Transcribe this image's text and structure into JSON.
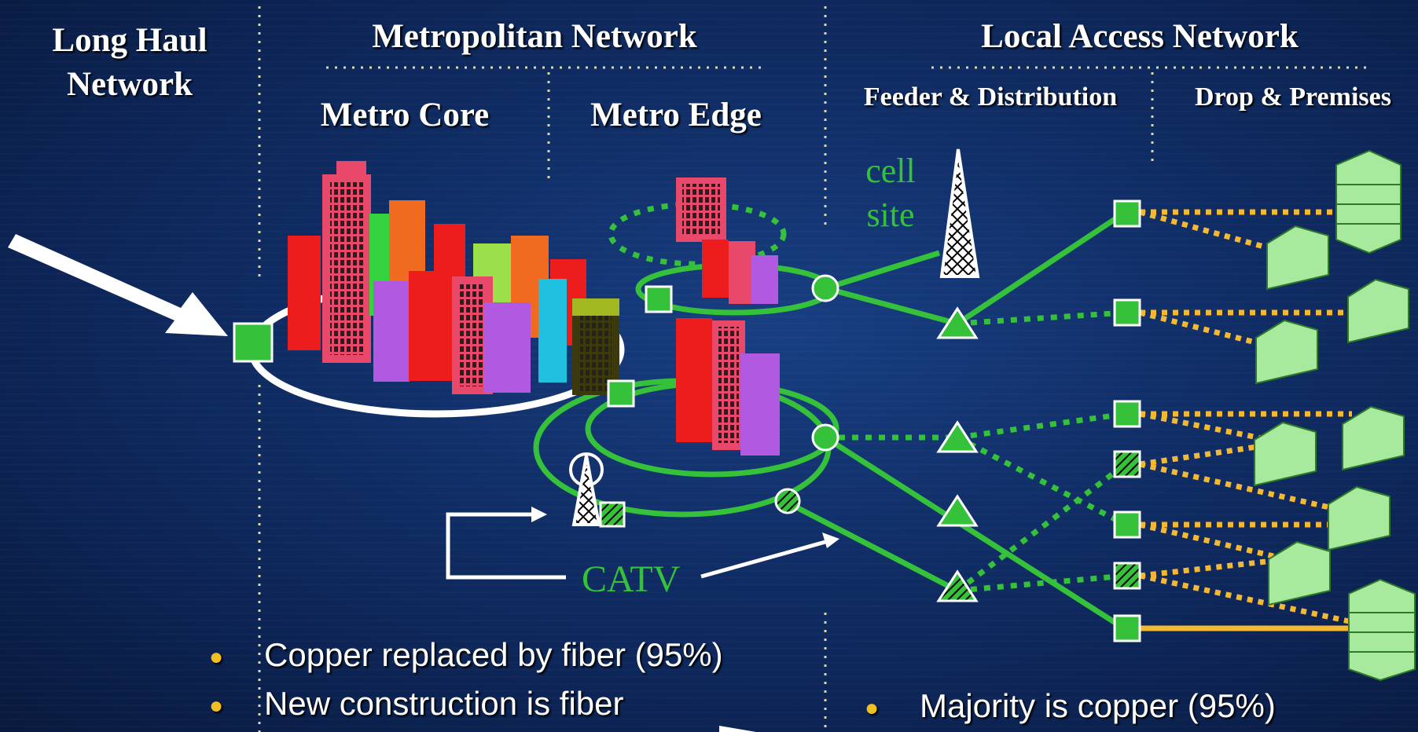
{
  "headers": {
    "long_haul": "Long Haul Network",
    "metro": "Metropolitan Network",
    "local": "Local Access Network",
    "metro_core": "Metro Core",
    "metro_edge": "Metro Edge",
    "feeder": "Feeder & Distribution",
    "drop": "Drop & Premises"
  },
  "labels": {
    "cell_line1": "cell",
    "cell_line2": "site",
    "catv": "CATV"
  },
  "bullets_left": [
    "Copper replaced by fiber (95%)",
    "New construction is fiber"
  ],
  "bullets_right": [
    "Majority is copper (95%)"
  ],
  "colors": {
    "node_green": "#35c13a",
    "fiber_green": "#35c13a",
    "copper_yellow": "#f5b832",
    "divider": "#d8d8b0",
    "bullet": "#f0c020"
  }
}
